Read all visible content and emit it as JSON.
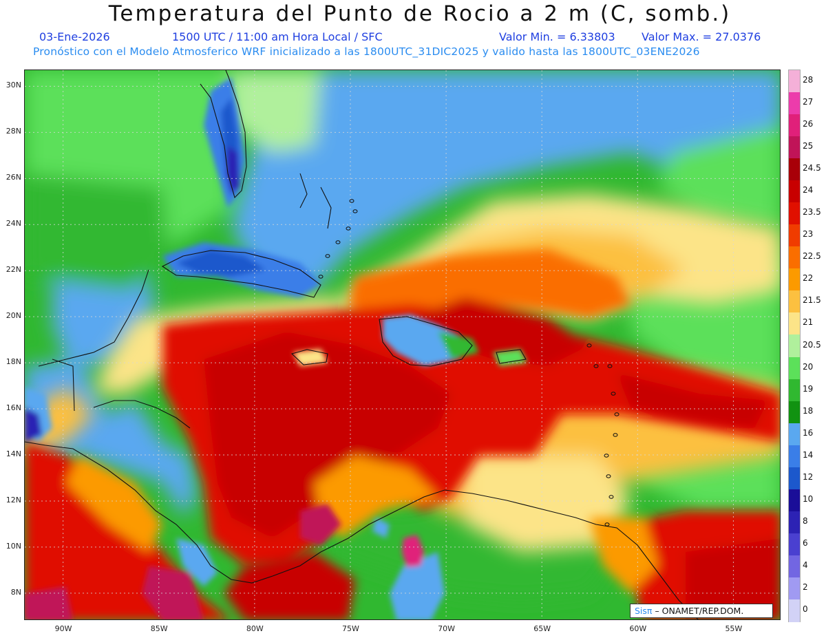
{
  "header": {
    "title": "Temperatura del Punto de Rocio a 2 m (C, somb.)",
    "date": "03-Ene-2026",
    "time": "1500 UTC / 11:00 am Hora Local / SFC",
    "valmin": "Valor Min. = 6.33803",
    "valmax": "Valor Max. = 27.0376",
    "forecast": "Pronóstico con el Modelo Atmosferico WRF inicializado a las 1800UTC_31DIC2025 y valido hasta las  1800UTC_03ENE2026"
  },
  "axes": {
    "lat_labels": [
      "30N",
      "28N",
      "26N",
      "24N",
      "22N",
      "20N",
      "18N",
      "16N",
      "14N",
      "12N",
      "10N",
      "8N"
    ],
    "lon_labels": [
      "90W",
      "85W",
      "80W",
      "75W",
      "70W",
      "65W",
      "60W",
      "55W"
    ],
    "lat_values": [
      30,
      28,
      26,
      24,
      22,
      20,
      18,
      16,
      14,
      12,
      10,
      8
    ],
    "lon_values": [
      -90,
      -85,
      -80,
      -75,
      -70,
      -65,
      -60,
      -55
    ],
    "extent": {
      "lon_min": -92,
      "lon_max": -52.5,
      "lat_min": 6.8,
      "lat_max": 30.7
    }
  },
  "colorbar": {
    "labels": [
      "28",
      "27",
      "26",
      "25",
      "24.5",
      "24",
      "23.5",
      "23",
      "22.5",
      "22",
      "21.5",
      "21",
      "20.5",
      "20",
      "19",
      "18",
      "16",
      "14",
      "12",
      "10",
      "8",
      "6",
      "4",
      "2",
      "0"
    ],
    "colors": [
      "#f4b0d8",
      "#ec3cab",
      "#e0207a",
      "#c01458",
      "#a80008",
      "#c80000",
      "#e01000",
      "#f03c00",
      "#fa6e00",
      "#fc9a00",
      "#fcc040",
      "#fce488",
      "#b0f09c",
      "#5ce05a",
      "#30b830",
      "#119211",
      "#5aa8f0",
      "#3a7ee8",
      "#1c58cc",
      "#1a0e98",
      "#2c22b4",
      "#4a40d0",
      "#7266e2",
      "#a09af2",
      "#d2d2f6"
    ]
  },
  "credit": {
    "sis": "Sisπ",
    "org": "– ONAMET/REP.DOM."
  }
}
